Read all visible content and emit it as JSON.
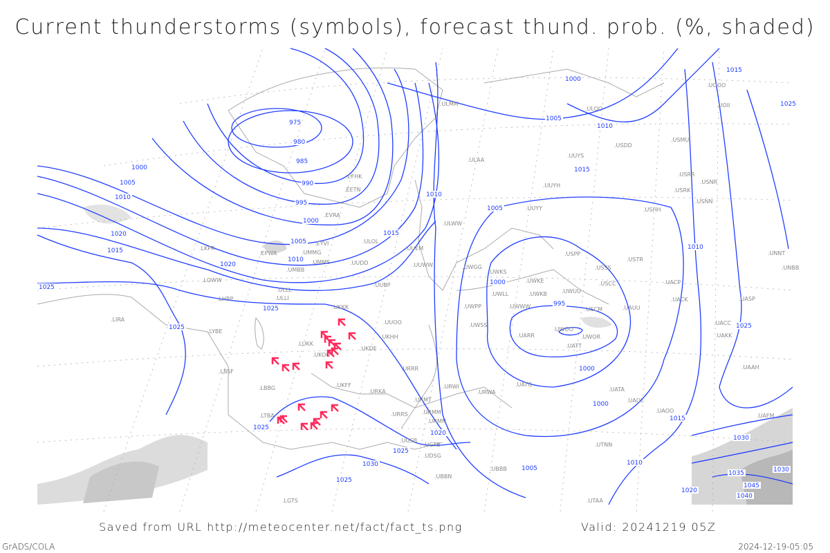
{
  "title": "Current thunderstorms (symbols), forecast thund. prob. (%, shaded)",
  "footer": {
    "saved": "Saved from URL http://meteocenter.net/fact/fact_ts.png",
    "valid": "Valid: 20241219 05Z",
    "software": "GrADS/COLA",
    "timestamp": "2024-12-19-05:05"
  },
  "colors": {
    "isobar": "#1f3dff",
    "thunderstorm_symbol": "#ff2a5c",
    "coastline": "#aaaaaa",
    "probability_shading": "#d0d0d0"
  },
  "isobar_labels": [
    "975",
    "980",
    "985",
    "990",
    "995",
    "1000",
    "1005",
    "1010",
    "1000",
    "1005",
    "1010",
    "1015",
    "1020",
    "1025",
    "1025",
    "1010",
    "1015",
    "1020",
    "1025",
    "1000",
    "1005",
    "1010",
    "1015",
    "1005",
    "1000",
    "995",
    "1000",
    "1010",
    "1000",
    "1005",
    "1010",
    "1015",
    "1025",
    "1020",
    "1025",
    "1030",
    "1025",
    "1025",
    "1025",
    "1030",
    "1035",
    "1045",
    "1040",
    "1030",
    "1020",
    "1015"
  ],
  "stations": [
    "UUYY",
    "ULLI",
    "UMMG",
    "UKKK",
    "LUKK",
    "UKOO",
    "UKFF",
    "URRR",
    "LBBG",
    "LBSF",
    "LYBE",
    "LHBP",
    "LOWW",
    "LKPR",
    "EPWA",
    "UMBB",
    "UMMS",
    "EYVI",
    "EVRA",
    "EETN",
    "EFHK",
    "ULLL",
    "ULOL",
    "UUEM",
    "UUWW",
    "UUDD",
    "UUBP",
    "UUOO",
    "UKHH",
    "UKDE",
    "URKA",
    "URRS",
    "URMM",
    "URMN",
    "URMT",
    "URWI",
    "URWA",
    "UATG",
    "UWPP",
    "UWSS",
    "UWGG",
    "UWKS",
    "UWKE",
    "UWLL",
    "UWKB",
    "UWUU",
    "UWWW",
    "UARR",
    "UWOO",
    "UWOR",
    "UATT",
    "USSS",
    "USCC",
    "USCM",
    "UAUU",
    "USTR",
    "USPP",
    "UACP",
    "UACK",
    "UASP",
    "UACC",
    "UAKK",
    "UAAH",
    "UAFM",
    "UATA",
    "UAOL",
    "UAOO",
    "UTNN",
    "UTAA",
    "UBBB",
    "UGTB",
    "UGSB",
    "UDSG",
    "UBBN",
    "LTBA",
    "LIRA",
    "LGTS",
    "UUYH",
    "UUYS",
    "USHH",
    "USRR",
    "USRK",
    "USNR",
    "USNN",
    "UNNT",
    "UNBB",
    "ULWW",
    "ULAA",
    "ULMM",
    "ULOO",
    "USDD",
    "USMU",
    "UOII",
    "UOOO"
  ],
  "thunderstorm_count": 20
}
